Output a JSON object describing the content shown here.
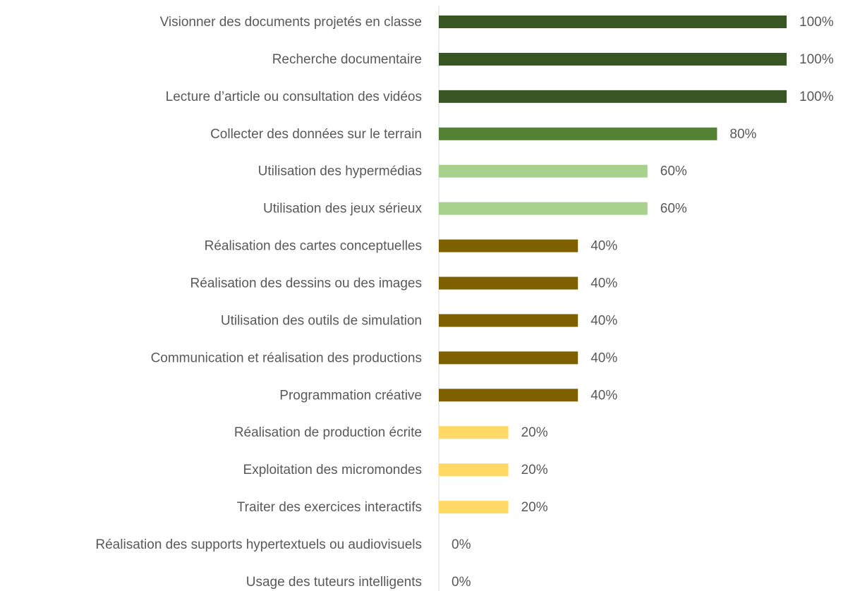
{
  "chart_data": {
    "type": "hbar",
    "categories": [
      "Visionner des documents projetés en classe",
      "Recherche documentaire",
      "Lecture d’article ou consultation des vidéos",
      "Collecter des données sur le terrain",
      "Utilisation des hypermédias",
      "Utilisation des jeux sérieux",
      "Réalisation des cartes conceptuelles",
      "Réalisation des dessins ou des images",
      "Utilisation des outils de simulation",
      "Communication et réalisation des productions",
      "Programmation créative",
      "Réalisation de production écrite",
      "Exploitation des micromondes",
      "Traiter des exercices interactifs",
      "Réalisation des supports hypertextuels ou audiovisuels",
      "Usage des tuteurs intelligents"
    ],
    "values": [
      100,
      100,
      100,
      80,
      60,
      60,
      40,
      40,
      40,
      40,
      40,
      20,
      20,
      20,
      0,
      0
    ],
    "value_labels": [
      "100%",
      "100%",
      "100%",
      "80%",
      "60%",
      "60%",
      "40%",
      "40%",
      "40%",
      "40%",
      "40%",
      "20%",
      "20%",
      "20%",
      "0%",
      "0%"
    ],
    "colors": [
      "#375623",
      "#375623",
      "#375623",
      "#548235",
      "#a9d18e",
      "#a9d18e",
      "#7f6000",
      "#7f6000",
      "#7f6000",
      "#7f6000",
      "#7f6000",
      "#ffd966",
      "#ffd966",
      "#ffd966",
      "#ffd966",
      "#ffd966"
    ],
    "xlim": [
      0,
      100
    ]
  }
}
